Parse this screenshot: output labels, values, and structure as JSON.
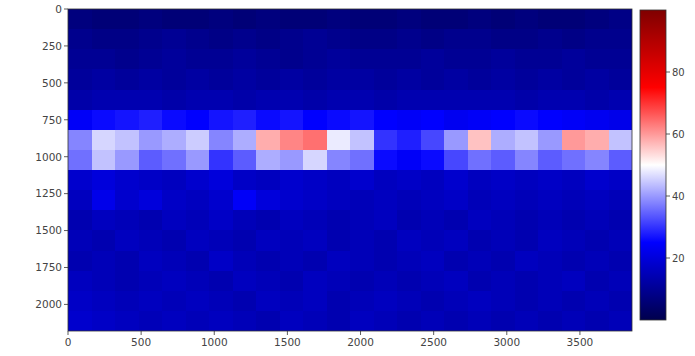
{
  "chart_data": {
    "type": "heatmap",
    "color": "seismic",
    "xlim": [
      0,
      3856
    ],
    "ylim": [
      2180,
      0
    ],
    "xticks": [
      0,
      500,
      1000,
      1500,
      2000,
      2500,
      3000,
      3500
    ],
    "yticks": [
      0,
      250,
      500,
      750,
      1000,
      1250,
      1500,
      1750,
      2000
    ],
    "colorbar_range": [
      0,
      100
    ],
    "colorbar_ticks": [
      20,
      40,
      60,
      80
    ],
    "cells": [
      [
        7,
        6,
        6,
        7,
        6,
        6,
        7,
        6,
        7,
        6,
        6,
        7,
        6,
        6,
        7,
        6,
        6,
        7,
        6,
        7,
        6,
        6,
        7,
        8
      ],
      [
        9,
        8,
        8,
        9,
        10,
        9,
        8,
        9,
        8,
        9,
        10,
        9,
        8,
        8,
        9,
        8,
        9,
        9,
        8,
        8,
        9,
        8,
        9,
        9
      ],
      [
        10,
        10,
        9,
        10,
        11,
        10,
        10,
        11,
        10,
        9,
        10,
        11,
        10,
        10,
        10,
        11,
        10,
        10,
        11,
        10,
        10,
        11,
        10,
        10
      ],
      [
        11,
        12,
        11,
        12,
        11,
        12,
        11,
        12,
        11,
        12,
        11,
        12,
        12,
        11,
        12,
        11,
        12,
        11,
        12,
        11,
        12,
        11,
        12,
        11
      ],
      [
        13,
        14,
        14,
        14,
        13,
        14,
        14,
        13,
        14,
        14,
        13,
        14,
        14,
        13,
        14,
        14,
        14,
        14,
        14,
        13,
        14,
        14,
        13,
        14
      ],
      [
        24,
        26,
        27,
        28,
        26,
        25,
        27,
        28,
        26,
        27,
        25,
        26,
        27,
        25,
        24,
        25,
        23,
        24,
        25,
        26,
        25,
        24,
        23,
        22
      ],
      [
        38,
        46,
        44,
        40,
        42,
        45,
        38,
        42,
        58,
        62,
        64,
        48,
        44,
        30,
        28,
        32,
        40,
        56,
        42,
        44,
        40,
        60,
        58,
        44
      ],
      [
        36,
        44,
        40,
        34,
        36,
        40,
        30,
        34,
        42,
        40,
        46,
        38,
        36,
        26,
        24,
        26,
        32,
        36,
        34,
        38,
        34,
        36,
        38,
        34
      ],
      [
        18,
        20,
        18,
        17,
        16,
        18,
        20,
        17,
        16,
        18,
        17,
        16,
        18,
        16,
        17,
        16,
        18,
        16,
        17,
        16,
        17,
        16,
        18,
        17
      ],
      [
        16,
        22,
        18,
        20,
        17,
        16,
        18,
        24,
        20,
        18,
        17,
        16,
        15,
        16,
        15,
        16,
        17,
        15,
        16,
        15,
        16,
        15,
        16,
        15
      ],
      [
        14,
        16,
        15,
        14,
        16,
        15,
        17,
        15,
        14,
        16,
        15,
        14,
        15,
        16,
        14,
        15,
        14,
        16,
        15,
        14,
        15,
        14,
        15,
        14
      ],
      [
        15,
        14,
        16,
        15,
        14,
        16,
        15,
        14,
        16,
        15,
        16,
        14,
        15,
        14,
        16,
        15,
        16,
        14,
        15,
        14,
        16,
        15,
        14,
        15
      ],
      [
        14,
        15,
        14,
        16,
        15,
        14,
        17,
        15,
        14,
        15,
        14,
        16,
        15,
        14,
        15,
        16,
        14,
        15,
        14,
        16,
        15,
        14,
        15,
        14
      ],
      [
        16,
        15,
        14,
        15,
        16,
        15,
        14,
        16,
        15,
        14,
        16,
        15,
        14,
        15,
        14,
        15,
        16,
        14,
        15,
        14,
        15,
        16,
        14,
        15
      ],
      [
        17,
        16,
        15,
        16,
        15,
        16,
        15,
        14,
        16,
        15,
        16,
        14,
        15,
        16,
        15,
        14,
        15,
        16,
        15,
        14,
        15,
        14,
        15,
        14
      ],
      [
        18,
        17,
        16,
        15,
        16,
        15,
        16,
        15,
        14,
        16,
        15,
        14,
        16,
        15,
        14,
        15,
        14,
        15,
        14,
        15,
        14,
        15,
        14,
        15
      ]
    ]
  }
}
